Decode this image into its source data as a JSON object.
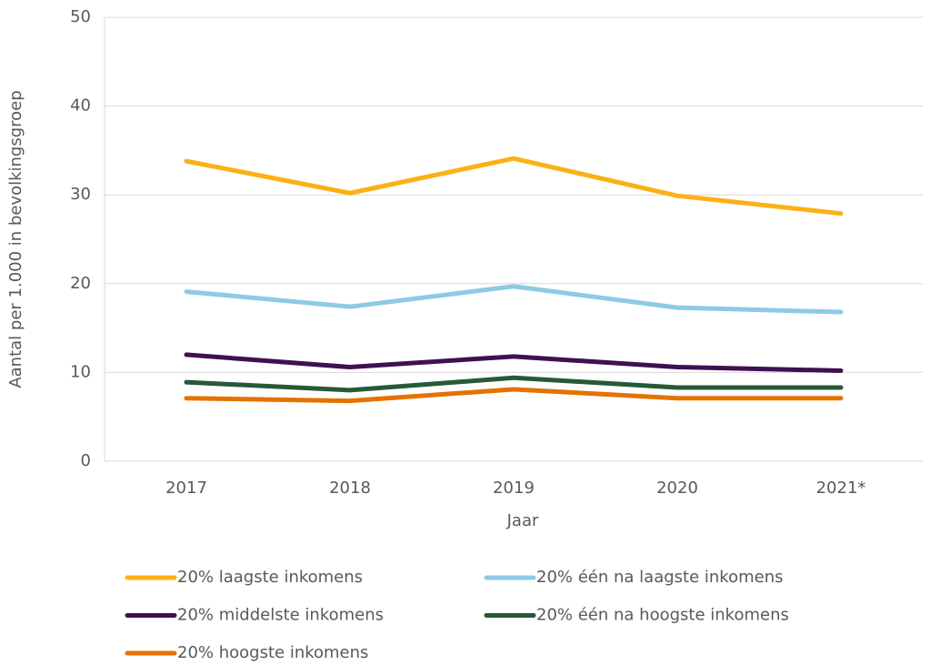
{
  "chart_data": {
    "type": "line",
    "x_label": "Jaar",
    "y_label": "Aantal per 1.000 in bevolkingsgroep",
    "categories": [
      "2017",
      "2018",
      "2019",
      "2020",
      "2021*"
    ],
    "series": [
      {
        "name": "20% laagste inkomens",
        "color": "#fbb116",
        "values": [
          33.8,
          30.2,
          34.1,
          29.9,
          27.9
        ]
      },
      {
        "name": "20% één na laagste inkomens",
        "color": "#8ecae6",
        "values": [
          19.1,
          17.4,
          19.7,
          17.3,
          16.8
        ]
      },
      {
        "name": "20% middelste inkomens",
        "color": "#3f1052",
        "values": [
          12.0,
          10.6,
          11.8,
          10.6,
          10.2
        ]
      },
      {
        "name": "20% één na hoogste inkomens",
        "color": "#275937",
        "values": [
          8.9,
          8.0,
          9.4,
          8.3,
          8.3
        ]
      },
      {
        "name": "20% hoogste inkomens",
        "color": "#e57200",
        "values": [
          7.1,
          6.8,
          8.1,
          7.1,
          7.1
        ]
      }
    ],
    "ylim": [
      0,
      50
    ],
    "yticks": [
      0,
      10,
      20,
      30,
      40,
      50
    ],
    "grid": true,
    "legend": "bottom"
  }
}
